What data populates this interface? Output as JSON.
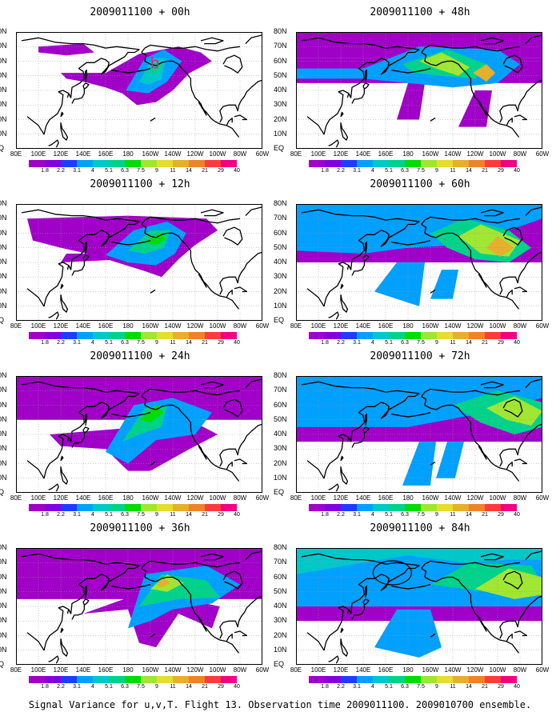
{
  "panels": [
    {
      "title": "2009011100 + 00h",
      "annotation": "b",
      "annotation_color": "#e0208c"
    },
    {
      "title": "2009011100 + 48h"
    },
    {
      "title": "2009011100 + 12h"
    },
    {
      "title": "2009011100 + 60h"
    },
    {
      "title": "2009011100 + 24h"
    },
    {
      "title": "2009011100 + 72h"
    },
    {
      "title": "2009011100 + 36h"
    },
    {
      "title": "2009011100 + 84h",
      "annotation": "circle",
      "annotation_color": "#000000"
    }
  ],
  "lat_labels": [
    "80N",
    "70N",
    "60N",
    "50N",
    "40N",
    "30N",
    "20N",
    "10N",
    "EQ"
  ],
  "lon_labels": [
    "80E",
    "100E",
    "120E",
    "140E",
    "160E",
    "180",
    "160W",
    "140W",
    "120W",
    "100W",
    "80W",
    "60W"
  ],
  "colorbar": {
    "labels": [
      "1.8",
      "2.2",
      "3.1",
      "4",
      "5.1",
      "6.3",
      "7.5",
      "9",
      "11",
      "14",
      "21",
      "29",
      "40"
    ],
    "colors": [
      "#a000c8",
      "#8200dc",
      "#1e3cff",
      "#00a0ff",
      "#00c8c8",
      "#00d28c",
      "#00dc00",
      "#a0e632",
      "#e6dc32",
      "#e6af2d",
      "#f08228",
      "#fa3c3c",
      "#f00082"
    ]
  },
  "caption": "Signal Variance for u,v,T. Flight 13. Observation time 2009011100. 2009010700 ensemble."
}
